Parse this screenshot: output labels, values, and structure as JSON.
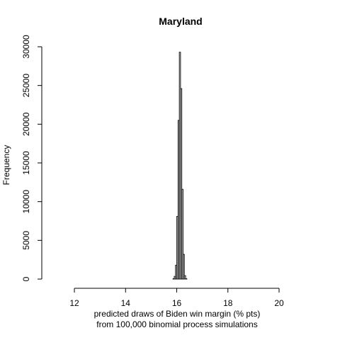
{
  "chart_data": {
    "type": "bar",
    "title": "Maryland",
    "xlabel_line1": "predicted draws of Biden win margin (% pts)",
    "xlabel_line2": "from 100,000 binomial process simulations",
    "ylabel": "Frequency",
    "xlim": [
      12,
      20
    ],
    "ylim": [
      0,
      30000
    ],
    "x_ticks": [
      12,
      14,
      16,
      18,
      20
    ],
    "y_ticks": [
      0,
      5000,
      10000,
      15000,
      20000,
      25000,
      30000
    ],
    "bin_width": 0.05,
    "bins": [
      {
        "x0": 15.85,
        "x1": 15.9,
        "count": 50
      },
      {
        "x0": 15.9,
        "x1": 15.95,
        "count": 350
      },
      {
        "x0": 15.95,
        "x1": 16.0,
        "count": 1800
      },
      {
        "x0": 16.0,
        "x1": 16.05,
        "count": 8100
      },
      {
        "x0": 16.05,
        "x1": 16.1,
        "count": 20500
      },
      {
        "x0": 16.1,
        "x1": 16.15,
        "count": 29300
      },
      {
        "x0": 16.15,
        "x1": 16.2,
        "count": 24600
      },
      {
        "x0": 16.2,
        "x1": 16.25,
        "count": 11600
      },
      {
        "x0": 16.25,
        "x1": 16.3,
        "count": 3200
      },
      {
        "x0": 16.3,
        "x1": 16.35,
        "count": 450
      },
      {
        "x0": 16.35,
        "x1": 16.4,
        "count": 50
      }
    ],
    "bar_fill": "#bebebe",
    "bar_stroke": "#000000"
  }
}
